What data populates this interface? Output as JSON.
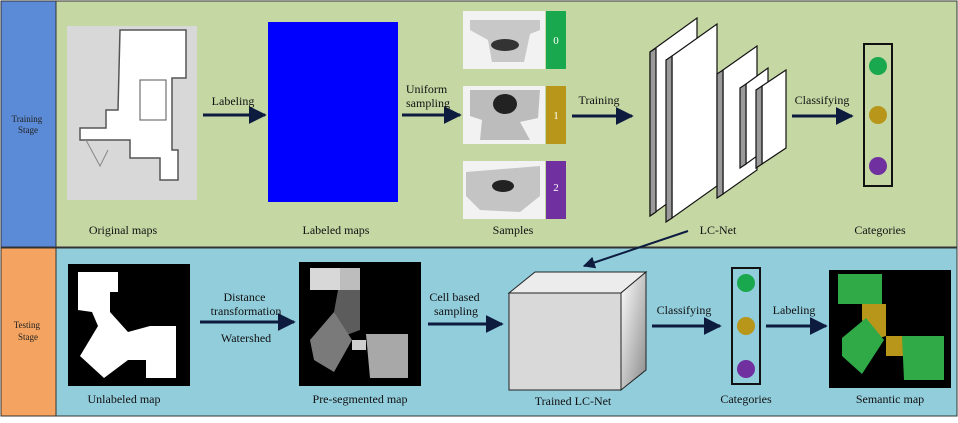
{
  "stages": {
    "training": {
      "label": "Training Stage",
      "label_lines": [
        "Training",
        "Stage"
      ],
      "side_color": "#5b8bd6",
      "panel_color": "#c5d8a4"
    },
    "testing": {
      "label": "Testing Stage",
      "label_lines": [
        "Testing",
        "Stage"
      ],
      "side_color": "#f4a460",
      "panel_color": "#92cddc"
    }
  },
  "training": {
    "original_maps_caption": "Original maps",
    "labeled_maps_caption": "Labeled maps",
    "samples_caption": "Samples",
    "lcnet_caption": "LC-Net",
    "categories_caption": "Categories",
    "arrow_labeling": "Labeling",
    "arrow_uniform_sampling": [
      "Uniform",
      "sampling"
    ],
    "arrow_training": "Training",
    "arrow_classifying": "Classifying",
    "sample_tags": [
      "0",
      "1",
      "2"
    ],
    "labeled_map_color": "#0000ff"
  },
  "testing": {
    "unlabeled_caption": "Unlabeled map",
    "presegmented_caption": "Pre-segmented map",
    "trained_caption": "Trained LC-Net",
    "categories_caption": "Categories",
    "semantic_caption": "Semantic map",
    "arrow_distance": [
      "Distance",
      "transformation"
    ],
    "arrow_watershed": "Watershed",
    "arrow_cell": [
      "Cell based",
      "sampling"
    ],
    "arrow_classifying": "Classifying",
    "arrow_labeling": "Labeling"
  },
  "category_colors": [
    "#1aa84e",
    "#b8961a",
    "#7030a0"
  ]
}
